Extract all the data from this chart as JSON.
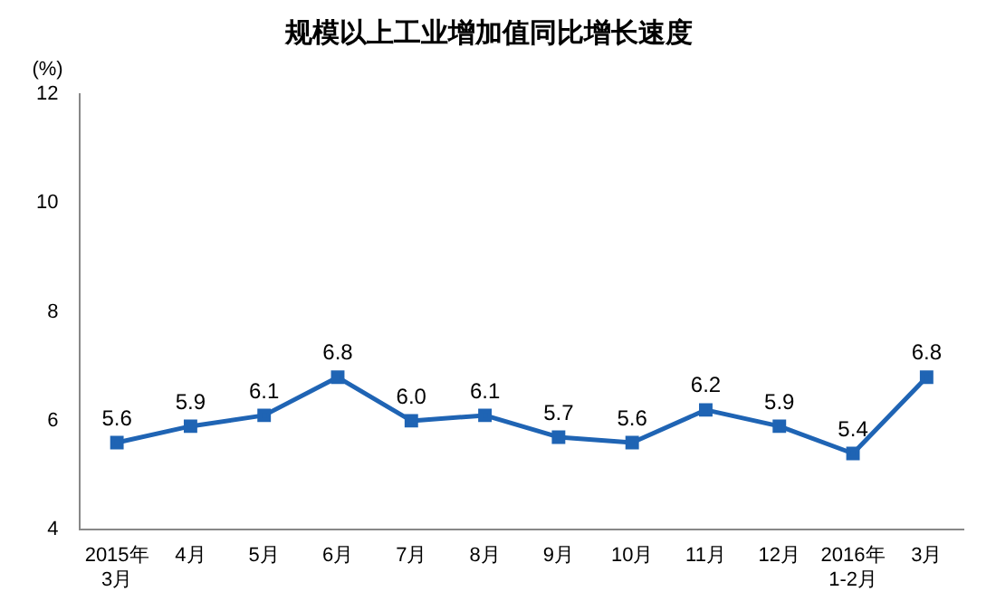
{
  "chart_data": {
    "type": "line",
    "title": "规模以上工业增加值同比增长速度",
    "ylabel": "(%)",
    "categories": [
      "2015年\n3月",
      "4月",
      "5月",
      "6月",
      "7月",
      "8月",
      "9月",
      "10月",
      "11月",
      "12月",
      "2016年\n1-2月",
      "3月"
    ],
    "series": [
      {
        "color": "#1f64b4",
        "values": [
          5.6,
          5.9,
          6.1,
          6.8,
          6.0,
          6.1,
          5.7,
          5.6,
          6.2,
          5.9,
          5.4,
          6.8
        ],
        "value_labels": [
          "5.6",
          "5.9",
          "6.1",
          "6.8",
          "6.0",
          "6.1",
          "5.7",
          "5.6",
          "6.2",
          "5.9",
          "5.4",
          "6.8"
        ]
      }
    ],
    "ylim": [
      4,
      12
    ],
    "yticks": [
      4,
      6,
      8,
      10,
      12
    ],
    "grid": false,
    "legend": false,
    "marker": "square",
    "line_style": "solid"
  }
}
